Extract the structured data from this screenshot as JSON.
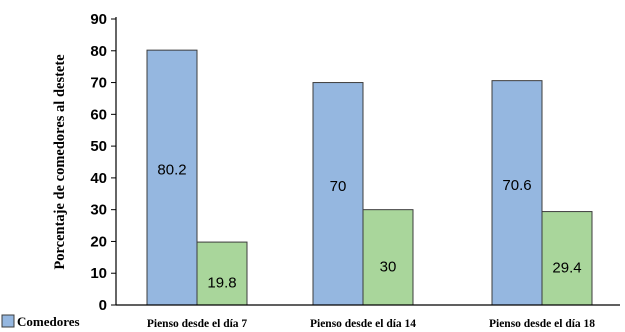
{
  "chart_data": {
    "type": "bar",
    "categories": [
      "Pienso desde el día 7",
      "Pienso desde el día 14",
      "Pienso desde el día 18"
    ],
    "series": [
      {
        "name": "Comedores",
        "values": [
          80.2,
          70,
          70.6
        ],
        "color": "#95b7e0",
        "stroke": "#3c3c3c"
      },
      {
        "name": "",
        "values": [
          19.8,
          30,
          29.4
        ],
        "color": "#a9d69b",
        "stroke": "#3c3c3c"
      }
    ],
    "data_labels": [
      [
        "80.2",
        "70",
        "70.6"
      ],
      [
        "19.8",
        "30",
        "29.4"
      ]
    ],
    "title": "",
    "xlabel": "",
    "ylabel": "Porcentaje de comedores al destete",
    "ylim": [
      0,
      90
    ],
    "yticks": [
      0,
      10,
      20,
      30,
      40,
      50,
      60,
      70,
      80,
      90
    ],
    "grid": false,
    "legend": {
      "position": "bottom-left",
      "entries": [
        "Comedores"
      ]
    }
  }
}
